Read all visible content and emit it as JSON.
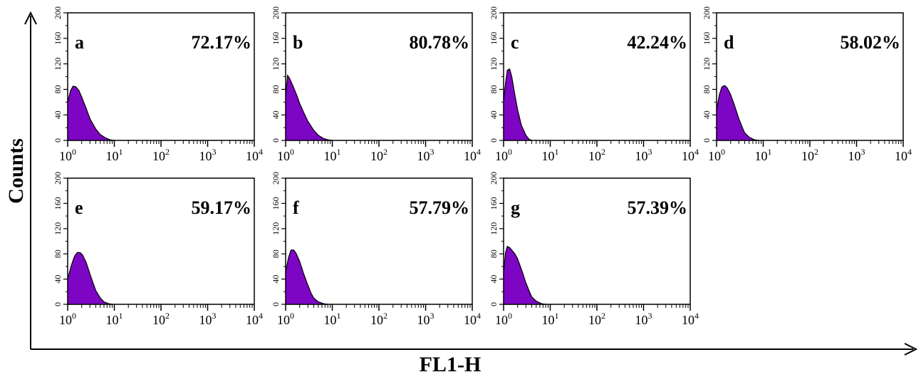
{
  "figure": {
    "xlabel": "FL1-H",
    "ylabel": "Counts",
    "accent_color": "#7d05c4"
  },
  "chart_data": [
    {
      "type": "area",
      "panel": "a",
      "percent": "72.17%",
      "xscale": "log",
      "xlim": [
        1,
        10000
      ],
      "ylim": [
        0,
        200
      ],
      "x_ticks": [
        "10",
        "10",
        "10",
        "10",
        "10"
      ],
      "x_tick_exponents": [
        "0",
        "1",
        "2",
        "3",
        "4"
      ],
      "y_ticks": [
        "0",
        "40",
        "80",
        "120",
        "160",
        "200"
      ],
      "x": [
        1.0,
        1.15,
        1.3,
        1.5,
        1.75,
        2.0,
        2.5,
        3.0,
        4.0,
        5.0,
        6.5,
        8.0,
        10.0
      ],
      "values": [
        60,
        78,
        85,
        84,
        78,
        68,
        50,
        34,
        18,
        9,
        4,
        1,
        0
      ]
    },
    {
      "type": "area",
      "panel": "b",
      "percent": "80.78%",
      "xscale": "log",
      "xlim": [
        1,
        10000
      ],
      "ylim": [
        0,
        200
      ],
      "x_ticks": [
        "10",
        "10",
        "10",
        "10",
        "10"
      ],
      "x_tick_exponents": [
        "0",
        "1",
        "2",
        "3",
        "4"
      ],
      "y_ticks": [
        "0",
        "40",
        "80",
        "120",
        "160",
        "200"
      ],
      "x": [
        1.0,
        1.1,
        1.2,
        1.35,
        1.5,
        1.75,
        2.0,
        2.5,
        3.0,
        4.0,
        5.0,
        6.5,
        8.0,
        10.0
      ],
      "values": [
        70,
        102,
        98,
        90,
        82,
        70,
        58,
        42,
        30,
        16,
        8,
        3,
        1,
        0
      ]
    },
    {
      "type": "area",
      "panel": "c",
      "percent": "42.24%",
      "xscale": "log",
      "xlim": [
        1,
        10000
      ],
      "ylim": [
        0,
        200
      ],
      "x_ticks": [
        "10",
        "10",
        "10",
        "10",
        "10"
      ],
      "x_tick_exponents": [
        "0",
        "1",
        "2",
        "3",
        "4"
      ],
      "y_ticks": [
        "0",
        "40",
        "80",
        "120",
        "160",
        "200"
      ],
      "x": [
        1.0,
        1.1,
        1.2,
        1.35,
        1.5,
        1.7,
        2.0,
        2.4,
        3.0,
        3.5,
        4.0
      ],
      "values": [
        62,
        90,
        110,
        112,
        100,
        76,
        48,
        24,
        8,
        2,
        0
      ]
    },
    {
      "type": "area",
      "panel": "d",
      "percent": "58.02%",
      "xscale": "log",
      "xlim": [
        1,
        10000
      ],
      "ylim": [
        0,
        200
      ],
      "x_ticks": [
        "10",
        "10",
        "10",
        "10",
        "10"
      ],
      "x_tick_exponents": [
        "0",
        "1",
        "2",
        "3",
        "4"
      ],
      "y_ticks": [
        "0",
        "40",
        "80",
        "120",
        "160",
        "200"
      ],
      "x": [
        1.0,
        1.15,
        1.3,
        1.5,
        1.7,
        2.0,
        2.4,
        3.0,
        3.5,
        4.0,
        5.0,
        6.5,
        8.0
      ],
      "values": [
        48,
        72,
        84,
        86,
        82,
        72,
        56,
        34,
        22,
        12,
        5,
        1,
        0
      ]
    },
    {
      "type": "area",
      "panel": "e",
      "percent": "59.17%",
      "xscale": "log",
      "xlim": [
        1,
        10000
      ],
      "ylim": [
        0,
        200
      ],
      "x_ticks": [
        "10",
        "10",
        "10",
        "10",
        "10"
      ],
      "x_tick_exponents": [
        "0",
        "1",
        "2",
        "3",
        "4"
      ],
      "y_ticks": [
        "0",
        "40",
        "80",
        "120",
        "160",
        "200"
      ],
      "x": [
        1.0,
        1.2,
        1.4,
        1.6,
        1.85,
        2.1,
        2.5,
        3.0,
        3.5,
        4.0,
        5.0,
        6.0,
        7.5,
        9.0
      ],
      "values": [
        40,
        62,
        76,
        82,
        82,
        78,
        66,
        48,
        34,
        22,
        10,
        4,
        1,
        0
      ]
    },
    {
      "type": "area",
      "panel": "f",
      "percent": "57.79%",
      "xscale": "log",
      "xlim": [
        1,
        10000
      ],
      "ylim": [
        0,
        200
      ],
      "x_ticks": [
        "10",
        "10",
        "10",
        "10",
        "10"
      ],
      "x_tick_exponents": [
        "0",
        "1",
        "2",
        "3",
        "4"
      ],
      "y_ticks": [
        "0",
        "40",
        "80",
        "120",
        "160",
        "200"
      ],
      "x": [
        1.0,
        1.15,
        1.3,
        1.5,
        1.7,
        2.0,
        2.4,
        3.0,
        3.5,
        4.0,
        5.0,
        6.5,
        8.0
      ],
      "values": [
        52,
        74,
        86,
        86,
        80,
        68,
        50,
        30,
        18,
        10,
        4,
        1,
        0
      ]
    },
    {
      "type": "area",
      "panel": "g",
      "percent": "57.39%",
      "xscale": "log",
      "xlim": [
        1,
        10000
      ],
      "ylim": [
        0,
        200
      ],
      "x_ticks": [
        "10",
        "10",
        "10",
        "10",
        "10"
      ],
      "x_tick_exponents": [
        "0",
        "1",
        "2",
        "3",
        "4"
      ],
      "y_ticks": [
        "0",
        "40",
        "80",
        "120",
        "160",
        "200"
      ],
      "x": [
        1.0,
        1.1,
        1.2,
        1.35,
        1.5,
        1.75,
        2.0,
        2.5,
        3.0,
        3.5,
        4.0,
        5.0,
        6.5,
        8.0
      ],
      "values": [
        50,
        82,
        92,
        90,
        86,
        80,
        72,
        52,
        34,
        22,
        12,
        5,
        1,
        0
      ]
    }
  ]
}
